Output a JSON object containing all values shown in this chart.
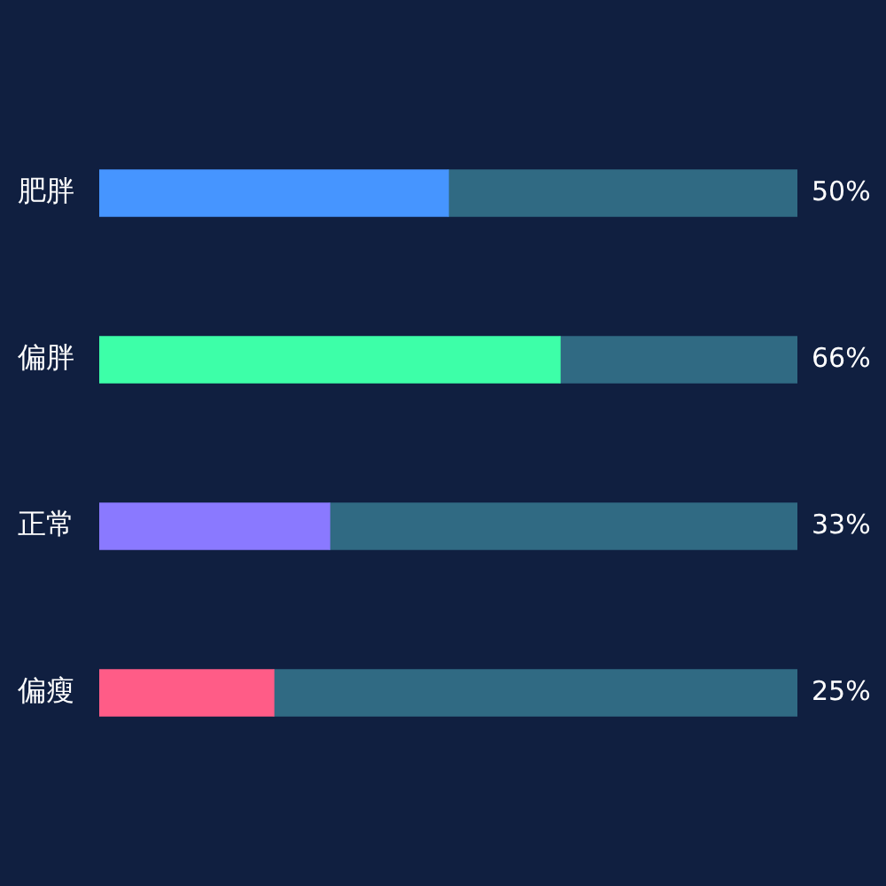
{
  "chart_data": {
    "type": "bar",
    "orientation": "horizontal",
    "stacked": true,
    "categories": [
      "肥胖",
      "偏胖",
      "正常",
      "偏瘦"
    ],
    "series": [
      {
        "values": [
          50,
          66,
          33,
          25
        ],
        "colors": [
          "#4695ff",
          "#3dffa8",
          "#8a79ff",
          "#ff5c87"
        ],
        "value_labels": [
          "50%",
          "66%",
          "33%",
          "25%"
        ]
      },
      {
        "values": [
          50,
          34,
          67,
          75
        ],
        "color": "#306a83"
      }
    ],
    "xlim": [
      0,
      100
    ],
    "legend": false
  }
}
